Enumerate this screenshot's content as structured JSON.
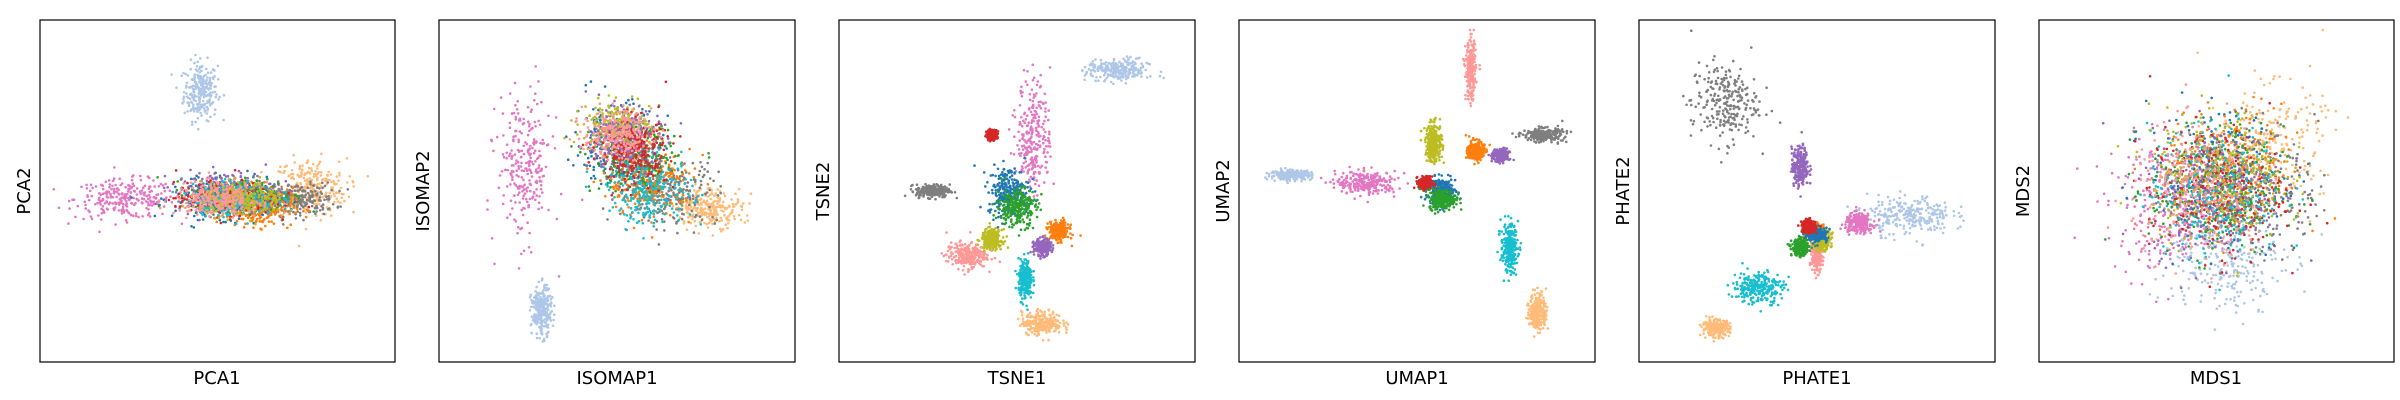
{
  "chart_data": [
    {
      "type": "scatter",
      "title": "",
      "xlabel": "PCA1",
      "ylabel": "PCA2",
      "ticks": false,
      "grid": false,
      "clusters": [
        {
          "color": "#aec7e8",
          "center": [
            -0.1,
            0.62
          ],
          "spread": [
            0.1,
            0.18
          ]
        },
        {
          "color": "#e377c2",
          "center": [
            -0.55,
            -0.05
          ],
          "spread": [
            0.3,
            0.12
          ]
        },
        {
          "color": "#ffbb78",
          "center": [
            0.55,
            0.02
          ],
          "spread": [
            0.22,
            0.18
          ]
        },
        {
          "color": "#7f7f7f",
          "center": [
            0.45,
            -0.05
          ],
          "spread": [
            0.25,
            0.1
          ]
        },
        {
          "color": "#1f77b4",
          "center": [
            0.05,
            -0.05
          ],
          "spread": [
            0.3,
            0.12
          ]
        },
        {
          "color": "#ff7f0e",
          "center": [
            0.25,
            -0.1
          ],
          "spread": [
            0.2,
            0.12
          ]
        },
        {
          "color": "#2ca02c",
          "center": [
            0.15,
            -0.02
          ],
          "spread": [
            0.3,
            0.1
          ]
        },
        {
          "color": "#9467bd",
          "center": [
            0.05,
            0.0
          ],
          "spread": [
            0.3,
            0.12
          ]
        },
        {
          "color": "#d62728",
          "center": [
            0.05,
            -0.05
          ],
          "spread": [
            0.3,
            0.1
          ]
        },
        {
          "color": "#17becf",
          "center": [
            0.1,
            -0.05
          ],
          "spread": [
            0.25,
            0.1
          ]
        },
        {
          "color": "#bcbd22",
          "center": [
            0.15,
            -0.05
          ],
          "spread": [
            0.25,
            0.1
          ]
        },
        {
          "color": "#ff9896",
          "center": [
            0.0,
            -0.05
          ],
          "spread": [
            0.25,
            0.1
          ]
        }
      ]
    },
    {
      "type": "scatter",
      "title": "",
      "xlabel": "ISOMAP1",
      "ylabel": "ISOMAP2",
      "ticks": false,
      "grid": false,
      "clusters": [
        {
          "color": "#e377c2",
          "center": [
            -0.55,
            0.15
          ],
          "spread": [
            0.16,
            0.45
          ]
        },
        {
          "color": "#aec7e8",
          "center": [
            -0.45,
            -0.75
          ],
          "spread": [
            0.06,
            0.15
          ]
        },
        {
          "color": "#ffbb78",
          "center": [
            0.55,
            -0.1
          ],
          "spread": [
            0.2,
            0.12
          ]
        },
        {
          "color": "#1f77b4",
          "center": [
            0.0,
            0.3
          ],
          "spread": [
            0.25,
            0.25
          ]
        },
        {
          "color": "#7f7f7f",
          "center": [
            0.3,
            0.0
          ],
          "spread": [
            0.3,
            0.2
          ]
        },
        {
          "color": "#ff7f0e",
          "center": [
            0.2,
            0.05
          ],
          "spread": [
            0.25,
            0.2
          ]
        },
        {
          "color": "#2ca02c",
          "center": [
            0.1,
            0.2
          ],
          "spread": [
            0.25,
            0.2
          ]
        },
        {
          "color": "#17becf",
          "center": [
            0.2,
            0.0
          ],
          "spread": [
            0.25,
            0.2
          ]
        },
        {
          "color": "#bcbd22",
          "center": [
            0.0,
            0.4
          ],
          "spread": [
            0.2,
            0.15
          ]
        },
        {
          "color": "#9467bd",
          "center": [
            0.05,
            0.3
          ],
          "spread": [
            0.2,
            0.2
          ]
        },
        {
          "color": "#d62728",
          "center": [
            0.1,
            0.25
          ],
          "spread": [
            0.2,
            0.2
          ]
        },
        {
          "color": "#ff9896",
          "center": [
            0.0,
            0.35
          ],
          "spread": [
            0.2,
            0.15
          ]
        }
      ]
    },
    {
      "type": "scatter",
      "title": "",
      "xlabel": "TSNE1",
      "ylabel": "TSNE2",
      "ticks": false,
      "grid": false,
      "clusters": [
        {
          "color": "#e377c2",
          "center": [
            0.1,
            0.35
          ],
          "spread": [
            0.1,
            0.35
          ]
        },
        {
          "color": "#aec7e8",
          "center": [
            0.6,
            0.75
          ],
          "spread": [
            0.18,
            0.07
          ]
        },
        {
          "color": "#7f7f7f",
          "center": [
            -0.5,
            0.0
          ],
          "spread": [
            0.1,
            0.04
          ]
        },
        {
          "color": "#1f77b4",
          "center": [
            -0.05,
            0.0
          ],
          "spread": [
            0.12,
            0.15
          ]
        },
        {
          "color": "#ff9896",
          "center": [
            -0.3,
            -0.4
          ],
          "spread": [
            0.12,
            0.08
          ]
        },
        {
          "color": "#ffbb78",
          "center": [
            0.15,
            -0.82
          ],
          "spread": [
            0.12,
            0.07
          ]
        },
        {
          "color": "#17becf",
          "center": [
            0.05,
            -0.55
          ],
          "spread": [
            0.04,
            0.12
          ]
        },
        {
          "color": "#bcbd22",
          "center": [
            -0.15,
            -0.3
          ],
          "spread": [
            0.06,
            0.06
          ]
        },
        {
          "color": "#ff7f0e",
          "center": [
            0.25,
            -0.25
          ],
          "spread": [
            0.06,
            0.06
          ]
        },
        {
          "color": "#9467bd",
          "center": [
            0.15,
            -0.35
          ],
          "spread": [
            0.05,
            0.05
          ]
        },
        {
          "color": "#d62728",
          "center": [
            -0.15,
            0.35
          ],
          "spread": [
            0.03,
            0.03
          ]
        },
        {
          "color": "#2ca02c",
          "center": [
            0.0,
            -0.1
          ],
          "spread": [
            0.12,
            0.12
          ]
        }
      ]
    },
    {
      "type": "scatter",
      "title": "",
      "xlabel": "UMAP1",
      "ylabel": "UMAP2",
      "ticks": false,
      "grid": false,
      "clusters": [
        {
          "color": "#aec7e8",
          "center": [
            -0.75,
            0.1
          ],
          "spread": [
            0.12,
            0.03
          ]
        },
        {
          "color": "#e377c2",
          "center": [
            -0.3,
            0.05
          ],
          "spread": [
            0.18,
            0.07
          ]
        },
        {
          "color": "#ff9896",
          "center": [
            0.32,
            0.75
          ],
          "spread": [
            0.03,
            0.18
          ]
        },
        {
          "color": "#bcbd22",
          "center": [
            0.1,
            0.3
          ],
          "spread": [
            0.05,
            0.12
          ]
        },
        {
          "color": "#1f77b4",
          "center": [
            0.15,
            0.0
          ],
          "spread": [
            0.08,
            0.08
          ]
        },
        {
          "color": "#ff7f0e",
          "center": [
            0.35,
            0.25
          ],
          "spread": [
            0.05,
            0.06
          ]
        },
        {
          "color": "#7f7f7f",
          "center": [
            0.75,
            0.35
          ],
          "spread": [
            0.12,
            0.04
          ]
        },
        {
          "color": "#17becf",
          "center": [
            0.55,
            -0.35
          ],
          "spread": [
            0.05,
            0.15
          ]
        },
        {
          "color": "#ffbb78",
          "center": [
            0.72,
            -0.75
          ],
          "spread": [
            0.05,
            0.12
          ]
        },
        {
          "color": "#9467bd",
          "center": [
            0.5,
            0.22
          ],
          "spread": [
            0.05,
            0.04
          ]
        },
        {
          "color": "#d62728",
          "center": [
            0.05,
            0.05
          ],
          "spread": [
            0.04,
            0.04
          ]
        },
        {
          "color": "#2ca02c",
          "center": [
            0.15,
            -0.05
          ],
          "spread": [
            0.08,
            0.06
          ]
        }
      ]
    },
    {
      "type": "scatter",
      "title": "",
      "xlabel": "PHATE1",
      "ylabel": "PHATE2",
      "ticks": false,
      "grid": false,
      "clusters": [
        {
          "color": "#7f7f7f",
          "center": [
            -0.55,
            0.55
          ],
          "spread": [
            0.2,
            0.25
          ]
        },
        {
          "color": "#9467bd",
          "center": [
            -0.1,
            0.15
          ],
          "spread": [
            0.05,
            0.12
          ]
        },
        {
          "color": "#aec7e8",
          "center": [
            0.55,
            -0.15
          ],
          "spread": [
            0.25,
            0.12
          ]
        },
        {
          "color": "#e377c2",
          "center": [
            0.25,
            -0.2
          ],
          "spread": [
            0.08,
            0.06
          ]
        },
        {
          "color": "#ff7f0e",
          "center": [
            -0.02,
            -0.25
          ],
          "spread": [
            0.05,
            0.04
          ]
        },
        {
          "color": "#ff9896",
          "center": [
            0.0,
            -0.4
          ],
          "spread": [
            0.03,
            0.1
          ]
        },
        {
          "color": "#bcbd22",
          "center": [
            0.03,
            -0.3
          ],
          "spread": [
            0.05,
            0.06
          ]
        },
        {
          "color": "#17becf",
          "center": [
            -0.35,
            -0.6
          ],
          "spread": [
            0.15,
            0.1
          ]
        },
        {
          "color": "#ffbb78",
          "center": [
            -0.6,
            -0.85
          ],
          "spread": [
            0.08,
            0.05
          ]
        },
        {
          "color": "#1f77b4",
          "center": [
            0.0,
            -0.27
          ],
          "spread": [
            0.06,
            0.04
          ]
        },
        {
          "color": "#2ca02c",
          "center": [
            -0.1,
            -0.35
          ],
          "spread": [
            0.05,
            0.05
          ]
        },
        {
          "color": "#d62728",
          "center": [
            -0.05,
            -0.22
          ],
          "spread": [
            0.04,
            0.04
          ]
        }
      ]
    },
    {
      "type": "scatter",
      "title": "",
      "xlabel": "MDS1",
      "ylabel": "MDS2",
      "ticks": false,
      "grid": false,
      "clusters": [
        {
          "color": "#e377c2",
          "center": [
            -0.3,
            -0.1
          ],
          "spread": [
            0.35,
            0.4
          ]
        },
        {
          "color": "#aec7e8",
          "center": [
            0.05,
            -0.45
          ],
          "spread": [
            0.35,
            0.3
          ]
        },
        {
          "color": "#ffbb78",
          "center": [
            0.3,
            0.3
          ],
          "spread": [
            0.35,
            0.35
          ]
        },
        {
          "color": "#1f77b4",
          "center": [
            0.0,
            0.1
          ],
          "spread": [
            0.4,
            0.4
          ]
        },
        {
          "color": "#7f7f7f",
          "center": [
            0.2,
            0.0
          ],
          "spread": [
            0.4,
            0.4
          ]
        },
        {
          "color": "#ff7f0e",
          "center": [
            0.1,
            0.1
          ],
          "spread": [
            0.4,
            0.4
          ]
        },
        {
          "color": "#2ca02c",
          "center": [
            0.0,
            0.0
          ],
          "spread": [
            0.4,
            0.4
          ]
        },
        {
          "color": "#9467bd",
          "center": [
            0.0,
            0.0
          ],
          "spread": [
            0.4,
            0.4
          ]
        },
        {
          "color": "#d62728",
          "center": [
            0.0,
            0.0
          ],
          "spread": [
            0.4,
            0.4
          ]
        },
        {
          "color": "#17becf",
          "center": [
            0.0,
            0.0
          ],
          "spread": [
            0.4,
            0.4
          ]
        },
        {
          "color": "#bcbd22",
          "center": [
            0.0,
            0.1
          ],
          "spread": [
            0.4,
            0.4
          ]
        },
        {
          "color": "#ff9896",
          "center": [
            -0.1,
            0.0
          ],
          "spread": [
            0.4,
            0.4
          ]
        }
      ]
    }
  ]
}
